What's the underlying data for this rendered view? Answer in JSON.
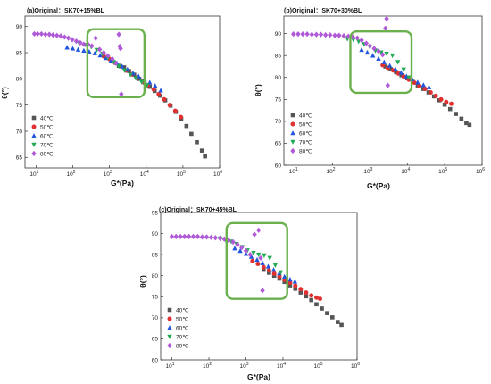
{
  "chart_data": [
    {
      "type": "scatter",
      "title": "(a)Original：SK70+15%BL",
      "xlabel": "G*(Pa)",
      "ylabel": "θ(°)",
      "xscale": "log",
      "xlim": [
        5,
        1000000
      ],
      "ylim": [
        63,
        92
      ],
      "xticks": [
        [
          "10",
          "1"
        ],
        [
          "10",
          "2"
        ],
        [
          "10",
          "3"
        ],
        [
          "10",
          "4"
        ],
        [
          "10",
          "5"
        ],
        [
          "10",
          "6"
        ]
      ],
      "yticks": [
        "65",
        "70",
        "75",
        "80",
        "85",
        "90"
      ],
      "legend_position": "lower-left",
      "highlight_box": {
        "color": "#6ab04c",
        "x_range": [
          250,
          9000
        ],
        "y_range": [
          76.5,
          89.5
        ]
      },
      "series": [
        {
          "name": "40℃",
          "marker": "square",
          "color": "#555555",
          "x": [
            1800,
            2500,
            3400,
            4700,
            6500,
            9000,
            12500,
            17000,
            24000,
            33000,
            46000,
            64000,
            90000,
            125000,
            170000,
            240000,
            330000,
            400000
          ],
          "y": [
            82.5,
            82.2,
            81.5,
            80.8,
            80.0,
            79.3,
            78.5,
            77.7,
            76.8,
            75.9,
            74.9,
            73.7,
            72.4,
            71.0,
            69.5,
            67.9,
            66.3,
            65.2
          ]
        },
        {
          "name": "50℃",
          "marker": "circle",
          "color": "#e03030",
          "x": [
            700,
            1000,
            1400,
            2000,
            2800,
            4000,
            5600,
            8000,
            11000,
            16000,
            22000,
            31000,
            44000,
            62000,
            88000
          ],
          "y": [
            84.3,
            83.8,
            83.1,
            82.4,
            81.6,
            80.9,
            80.2,
            79.5,
            78.8,
            78.0,
            77.1,
            76.1,
            75.0,
            73.9,
            72.7
          ]
        },
        {
          "name": "60℃",
          "marker": "triangle-up",
          "color": "#2255dd",
          "x": [
            70,
            100,
            140,
            200,
            280,
            400,
            560,
            800,
            1100,
            1600,
            2200,
            3100,
            4400,
            6200,
            8800,
            12500,
            17500,
            25000
          ],
          "y": [
            86.0,
            85.8,
            85.6,
            85.4,
            85.2,
            84.9,
            84.5,
            84.0,
            83.5,
            83.0,
            82.4,
            81.8,
            81.1,
            80.5,
            79.9,
            79.3,
            78.7,
            77.8
          ]
        },
        {
          "name": "70℃",
          "marker": "triangle-down",
          "color": "#22aa55",
          "x": [
            150,
            220,
            320,
            450,
            650,
            900,
            1300,
            1800,
            2600,
            3700,
            5200,
            7500,
            10500
          ],
          "y": [
            86.8,
            86.5,
            86.1,
            85.5,
            84.8,
            84.0,
            83.2,
            82.4,
            81.6,
            80.8,
            80.1,
            79.4,
            78.8
          ]
        },
        {
          "name": "80℃",
          "marker": "diamond",
          "color": "#b05ad8",
          "x": [
            9,
            11,
            14,
            18,
            23,
            29,
            37,
            47,
            60,
            76,
            97,
            125,
            160,
            200,
            260,
            330,
            420,
            540,
            700,
            900,
            1200,
            1500,
            1800,
            1900,
            2000,
            2100
          ],
          "y": [
            88.6,
            88.6,
            88.6,
            88.5,
            88.5,
            88.4,
            88.3,
            88.2,
            88.0,
            87.8,
            87.5,
            87.2,
            86.9,
            86.6,
            86.6,
            86.3,
            87.8,
            85.6,
            85.0,
            84.4,
            83.8,
            83.0,
            88.5,
            86.2,
            85.8,
            77.1
          ]
        }
      ]
    },
    {
      "type": "scatter",
      "title": "(b)Original：SK70+30%BL",
      "xlabel": "G*(Pa)",
      "ylabel": "θ(°)",
      "xscale": "log",
      "xlim": [
        5,
        1000000
      ],
      "ylim": [
        60,
        94
      ],
      "xticks": [
        [
          "10",
          "1"
        ],
        [
          "10",
          "2"
        ],
        [
          "10",
          "3"
        ],
        [
          "10",
          "4"
        ],
        [
          "10",
          "5"
        ],
        [
          "10",
          "6"
        ]
      ],
      "yticks": [
        "60",
        "65",
        "70",
        "75",
        "80",
        "85",
        "90"
      ],
      "legend_position": "lower-left",
      "highlight_box": {
        "color": "#6ab04c",
        "x_range": [
          300,
          13000
        ],
        "y_range": [
          76.5,
          90.5
        ]
      },
      "series": [
        {
          "name": "40℃",
          "marker": "square",
          "color": "#555555",
          "x": [
            2600,
            3600,
            5000,
            7000,
            10000,
            14000,
            19000,
            27000,
            37000,
            52000,
            72000,
            100000,
            140000,
            200000,
            280000,
            380000,
            460000
          ],
          "y": [
            82.5,
            81.9,
            81.2,
            80.5,
            79.8,
            79.0,
            78.2,
            77.4,
            76.6,
            75.7,
            74.8,
            73.8,
            72.8,
            71.7,
            70.6,
            69.6,
            69.2
          ]
        },
        {
          "name": "50℃",
          "marker": "circle",
          "color": "#e03030",
          "x": [
            2200,
            3000,
            4200,
            5800,
            8000,
            11000,
            15500,
            21000,
            30000,
            42000,
            58000,
            80000,
            110000,
            150000
          ],
          "y": [
            82.8,
            82.2,
            81.6,
            80.9,
            80.2,
            79.5,
            78.8,
            78.1,
            77.4,
            76.6,
            75.8,
            75.0,
            74.4,
            74.0
          ]
        },
        {
          "name": "60℃",
          "marker": "triangle-up",
          "color": "#2255dd",
          "x": [
            600,
            850,
            1200,
            1700,
            2400,
            3400,
            4800,
            6800,
            9500,
            13500,
            19000,
            27000,
            38000
          ],
          "y": [
            86.3,
            85.7,
            85.0,
            84.3,
            83.5,
            82.7,
            81.9,
            81.1,
            80.3,
            79.6,
            78.9,
            78.3,
            77.8
          ]
        },
        {
          "name": "70℃",
          "marker": "triangle-down",
          "color": "#22aa55",
          "x": [
            250,
            360,
            500,
            700,
            1000,
            1400,
            2000,
            2800,
            4000,
            5600,
            8000,
            11000
          ],
          "y": [
            88.8,
            88.6,
            88.2,
            87.6,
            86.9,
            86.1,
            85.7,
            85.4,
            85.0,
            83.5,
            81.8,
            80.0
          ]
        },
        {
          "name": "80℃",
          "marker": "diamond",
          "color": "#b05ad8",
          "x": [
            9,
            12,
            16,
            21,
            28,
            37,
            49,
            65,
            86,
            115,
            150,
            200,
            265,
            350,
            460,
            600,
            800,
            1000,
            1300,
            1700,
            2200,
            2600,
            2800,
            3000
          ],
          "y": [
            89.9,
            89.9,
            89.9,
            89.9,
            89.8,
            89.8,
            89.8,
            89.7,
            89.7,
            89.6,
            89.6,
            89.5,
            89.4,
            89.2,
            89.0,
            88.5,
            87.8,
            87.2,
            86.6,
            86.0,
            85.2,
            91.2,
            93.4,
            78.2
          ]
        }
      ]
    },
    {
      "type": "scatter",
      "title": "(c)Original：SK70+45%BL",
      "xlabel": "G*(Pa)",
      "ylabel": "θ(°)",
      "xscale": "log",
      "xlim": [
        5,
        1000000
      ],
      "ylim": [
        60,
        95
      ],
      "xticks": [
        [
          "10",
          "1"
        ],
        [
          "10",
          "2"
        ],
        [
          "10",
          "3"
        ],
        [
          "10",
          "4"
        ],
        [
          "10",
          "5"
        ],
        [
          "10",
          "6"
        ]
      ],
      "yticks": [
        "60",
        "65",
        "70",
        "75",
        "80",
        "85",
        "90",
        "95"
      ],
      "legend_position": "lower-left",
      "highlight_box": {
        "color": "#6ab04c",
        "x_range": [
          300,
          13000
        ],
        "y_range": [
          74.5,
          92.5
        ]
      },
      "series": [
        {
          "name": "40℃",
          "marker": "square",
          "color": "#555555",
          "x": [
            3000,
            4200,
            5800,
            8000,
            11000,
            15500,
            21500,
            30000,
            42000,
            58000,
            80000,
            112000,
            155000,
            215000,
            300000,
            380000
          ],
          "y": [
            81.4,
            80.7,
            80.0,
            79.3,
            78.5,
            77.7,
            76.9,
            76.0,
            75.1,
            74.2,
            73.2,
            72.2,
            71.1,
            70.1,
            69.0,
            68.3
          ]
        },
        {
          "name": "50℃",
          "marker": "circle",
          "color": "#e03030",
          "x": [
            1500,
            2100,
            3000,
            4200,
            5800,
            8000,
            11000,
            15500,
            21500,
            30000,
            42000,
            58000,
            80000,
            100000
          ],
          "y": [
            83.5,
            82.8,
            82.0,
            81.3,
            80.5,
            79.8,
            79.0,
            78.3,
            77.6,
            76.8,
            76.0,
            75.3,
            74.8,
            74.5
          ]
        },
        {
          "name": "60℃",
          "marker": "triangle-up",
          "color": "#2255dd",
          "x": [
            500,
            700,
            1000,
            1400,
            2000,
            2800,
            4000,
            5600,
            8000,
            11000,
            15500,
            21000
          ],
          "y": [
            86.5,
            85.9,
            85.2,
            84.5,
            83.8,
            83.0,
            82.2,
            81.4,
            80.6,
            79.8,
            79.1,
            78.6
          ]
        },
        {
          "name": "70℃",
          "marker": "triangle-down",
          "color": "#22aa55",
          "x": [
            200,
            280,
            400,
            560,
            800,
            1100,
            1600,
            2200,
            3100,
            4400,
            6200,
            8700
          ],
          "y": [
            88.8,
            88.5,
            88.1,
            87.5,
            86.8,
            86.0,
            85.4,
            85.0,
            84.8,
            84.2,
            82.5,
            80.8
          ]
        },
        {
          "name": "80℃",
          "marker": "diamond",
          "color": "#b05ad8",
          "x": [
            10,
            13,
            17,
            22,
            29,
            38,
            50,
            66,
            87,
            115,
            150,
            200,
            260,
            340,
            450,
            590,
            770,
            1000,
            1300,
            1700,
            2200,
            2500,
            2800
          ],
          "y": [
            89.3,
            89.3,
            89.3,
            89.3,
            89.3,
            89.3,
            89.3,
            89.2,
            89.2,
            89.1,
            89.0,
            88.9,
            88.7,
            88.4,
            88.0,
            87.4,
            86.7,
            85.9,
            85.0,
            89.8,
            90.8,
            84.2,
            76.5
          ]
        }
      ]
    }
  ]
}
